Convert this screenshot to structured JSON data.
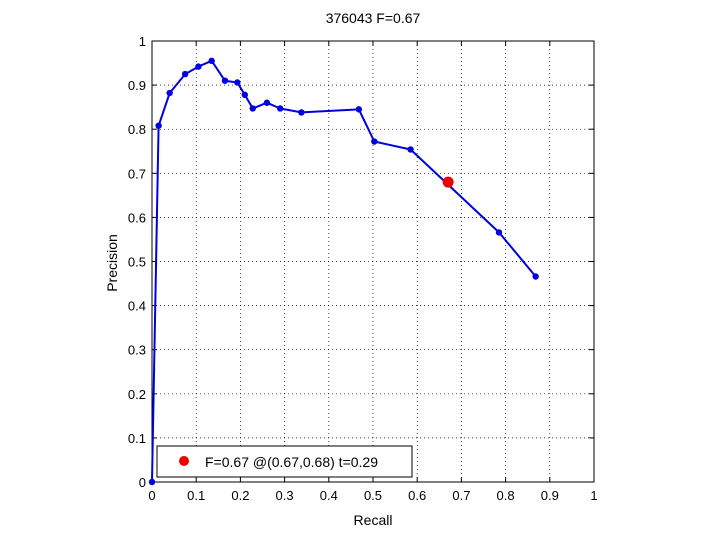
{
  "chart_data": {
    "type": "line",
    "title": "376043 F=0.67",
    "xlabel": "Recall",
    "ylabel": "Precision",
    "xlim": [
      0,
      1
    ],
    "ylim": [
      0,
      1
    ],
    "grid": true,
    "xticks": [
      "0",
      "0.1",
      "0.2",
      "0.3",
      "0.4",
      "0.5",
      "0.6",
      "0.7",
      "0.8",
      "0.9",
      "1"
    ],
    "yticks": [
      "0",
      "0.1",
      "0.2",
      "0.3",
      "0.4",
      "0.5",
      "0.6",
      "0.7",
      "0.8",
      "0.9",
      "1"
    ],
    "series": [
      {
        "color": "#0000e0",
        "x": [
          0.0,
          0.015,
          0.04,
          0.075,
          0.105,
          0.135,
          0.165,
          0.193,
          0.21,
          0.228,
          0.26,
          0.29,
          0.338,
          0.468,
          0.503,
          0.585,
          0.785,
          0.868
        ],
        "y": [
          0.0,
          0.808,
          0.882,
          0.925,
          0.942,
          0.955,
          0.91,
          0.906,
          0.878,
          0.847,
          0.86,
          0.847,
          0.838,
          0.845,
          0.772,
          0.754,
          0.566,
          0.466
        ]
      }
    ],
    "highlight_point": {
      "x": 0.67,
      "y": 0.68,
      "color": "#ee0000"
    },
    "legend": {
      "position": "bottom-left",
      "entries": [
        {
          "label": "F=0.67 @(0.67,0.68) t=0.29",
          "color": "#ee0000"
        }
      ]
    }
  }
}
